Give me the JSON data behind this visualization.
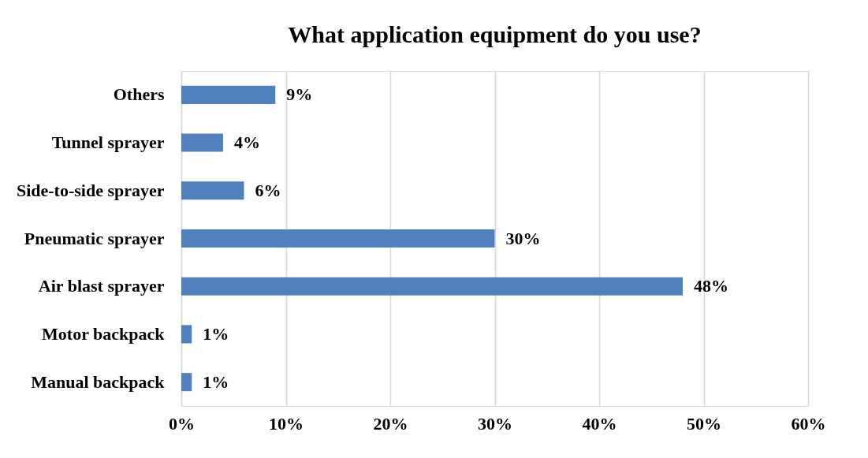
{
  "chart_data": {
    "type": "bar",
    "orientation": "horizontal",
    "title": "What application equipment do you use?",
    "categories": [
      "Others",
      "Tunnel sprayer",
      "Side-to-side sprayer",
      "Pneumatic sprayer",
      "Air blast sprayer",
      "Motor backpack",
      "Manual backpack"
    ],
    "values": [
      9,
      4,
      6,
      30,
      48,
      1,
      1
    ],
    "value_labels": [
      "9%",
      "4%",
      "6%",
      "30%",
      "48%",
      "1%",
      "1%"
    ],
    "color": "#4f81bd",
    "xlim": [
      0,
      60
    ],
    "xticks": [
      {
        "value": 0,
        "label": "0%"
      },
      {
        "value": 10,
        "label": "10%"
      },
      {
        "value": 20,
        "label": "20%"
      },
      {
        "value": 30,
        "label": "30%"
      },
      {
        "value": 40,
        "label": "40%"
      },
      {
        "value": 50,
        "label": "50%"
      },
      {
        "value": 60,
        "label": "60%"
      }
    ],
    "grid": "x"
  }
}
